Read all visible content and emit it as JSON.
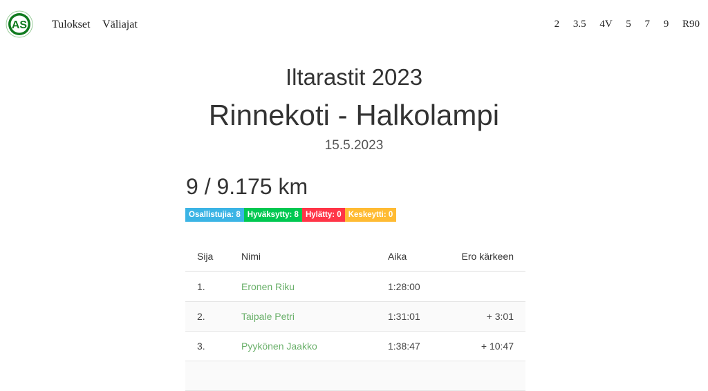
{
  "nav": {
    "links": [
      "Tulokset",
      "Väliajat"
    ],
    "classes": [
      "2",
      "3.5",
      "4V",
      "5",
      "7",
      "9",
      "R90"
    ],
    "logo_text": "AS"
  },
  "header": {
    "series": "Iltarastit 2023",
    "event": "Rinnekoti - Halkolampi",
    "date": "15.5.2023"
  },
  "course": "9 / 9.175 km",
  "badges": [
    {
      "label": "Osallistujia: 8",
      "color": "#3bb4e5"
    },
    {
      "label": "Hyväksytty: 8",
      "color": "#00c851"
    },
    {
      "label": "Hylätty: 0",
      "color": "#ff3547"
    },
    {
      "label": "Keskeytti: 0",
      "color": "#ffbb33"
    }
  ],
  "table": {
    "headers": [
      "Sija",
      "Nimi",
      "Aika",
      "Ero kärkeen"
    ],
    "rows": [
      [
        "1.",
        "Eronen Riku",
        "1:28:00",
        ""
      ],
      [
        "2.",
        "Taipale Petri",
        "1:31:01",
        "+ 3:01"
      ],
      [
        "3.",
        "Pyykönen Jaakko",
        "1:38:47",
        "+ 10:47"
      ]
    ]
  }
}
